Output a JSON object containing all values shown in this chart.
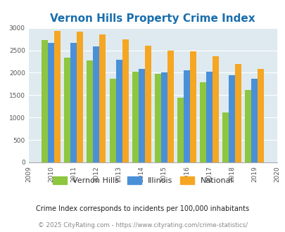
{
  "title": "Vernon Hills Property Crime Index",
  "plot_years": [
    2010,
    2011,
    2012,
    2013,
    2014,
    2015,
    2016,
    2017,
    2018,
    2019
  ],
  "vernon_hills": [
    2730,
    2340,
    2270,
    1870,
    2020,
    1980,
    1440,
    1790,
    1120,
    1620
  ],
  "illinois": [
    2670,
    2670,
    2590,
    2290,
    2090,
    2000,
    2060,
    2020,
    1950,
    1860
  ],
  "national": [
    2930,
    2920,
    2860,
    2740,
    2600,
    2500,
    2470,
    2360,
    2190,
    2090
  ],
  "colors": {
    "vernon_hills": "#8dc63f",
    "illinois": "#4a90d9",
    "national": "#f5a623"
  },
  "ylim": [
    0,
    3000
  ],
  "yticks": [
    0,
    500,
    1000,
    1500,
    2000,
    2500,
    3000
  ],
  "xticks": [
    2009,
    2010,
    2011,
    2012,
    2013,
    2014,
    2015,
    2016,
    2017,
    2018,
    2019,
    2020
  ],
  "title_color": "#1a6fad",
  "title_fontsize": 11,
  "background_color": "#deeaf0",
  "footnote1": "Crime Index corresponds to incidents per 100,000 inhabitants",
  "footnote2": "© 2025 CityRating.com - https://www.cityrating.com/crime-statistics/",
  "legend_labels": [
    "Vernon Hills",
    "Illinois",
    "National"
  ]
}
